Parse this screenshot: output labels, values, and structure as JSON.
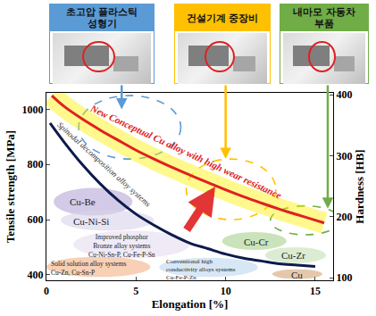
{
  "chart_data": {
    "type": "line",
    "xlabel": "Elongation [%]",
    "ylabel": "Tensile strength [MPa]",
    "y2label": "Hardness [HB]",
    "xlim": [
      0,
      16
    ],
    "xticks": [
      0,
      5,
      10,
      15
    ],
    "ylim": [
      380,
      1060
    ],
    "yticks": [
      400,
      600,
      800,
      1000
    ],
    "y2lim": [
      96,
      403
    ],
    "y2ticks": [
      100,
      200,
      300,
      400
    ],
    "grid": false,
    "series": [
      {
        "name": "New Conceptual Cu alloy with high wear resistance",
        "color": "#e02020",
        "line_style": "solid",
        "x": [
          0.3,
          1,
          2,
          3,
          4,
          5,
          6,
          7,
          8,
          9,
          10,
          11,
          12,
          13,
          14,
          15,
          15.5
        ],
        "values": [
          1050,
          1010,
          965,
          925,
          888,
          852,
          820,
          790,
          762,
          735,
          708,
          683,
          660,
          638,
          618,
          598,
          588
        ]
      },
      {
        "color": "#0d1b4c",
        "line_style": "solid",
        "x": [
          0.2,
          1,
          2,
          3,
          4,
          5,
          6,
          7,
          8,
          9,
          10,
          11,
          12,
          13,
          14,
          15
        ],
        "values": [
          950,
          880,
          800,
          730,
          670,
          620,
          580,
          545,
          515,
          495,
          475,
          460,
          450,
          440,
          435,
          430
        ]
      }
    ],
    "regions": [
      {
        "x": [
          0.4,
          4.8
        ],
        "y": [
          615,
          715
        ],
        "color": "#b4a7d6",
        "line_style": "solid"
      },
      {
        "x": [
          0.8,
          6.0
        ],
        "y": [
          560,
          635
        ],
        "color": "#d9d2e9",
        "line_style": "solid"
      },
      {
        "x": [
          1.5,
          8.0
        ],
        "y": [
          460,
          560
        ],
        "color": "#e4dcf0",
        "line_style": "solid"
      },
      {
        "x": [
          0.0,
          5.8
        ],
        "y": [
          392,
          465
        ],
        "color": "#f4b183",
        "line_style": "solid"
      },
      {
        "x": [
          6.3,
          11.8
        ],
        "y": [
          392,
          462
        ],
        "color": "#bdd7ee",
        "line_style": "solid"
      },
      {
        "x": [
          9.8,
          13.4
        ],
        "y": [
          490,
          555
        ],
        "color": "#a9d18e",
        "line_style": "solid"
      },
      {
        "x": [
          12.2,
          15.6
        ],
        "y": [
          442,
          500
        ],
        "color": "#c5e0b4",
        "line_style": "solid"
      },
      {
        "x": [
          12.6,
          15.4
        ],
        "y": [
          385,
          420
        ],
        "color": "#d4a373",
        "line_style": "solid"
      },
      {
        "x": [
          1.8,
          7.5
        ],
        "y": [
          820,
          1050
        ],
        "color": "#5b9bd5",
        "line_style": "dashed"
      },
      {
        "x": [
          7.8,
          12.8
        ],
        "y": [
          600,
          820
        ],
        "color": "#ffc000",
        "line_style": "dashed"
      },
      {
        "x": [
          12.5,
          16.4
        ],
        "y": [
          545,
          650
        ],
        "color": "#70ad47",
        "line_style": "dashed"
      }
    ],
    "annotations": [
      {
        "text": "Spinodal decomposition alloy systems",
        "x": 3.2,
        "y": 800
      },
      {
        "text": "Cu-Be",
        "x": 2.0,
        "y": 665
      },
      {
        "text": "Cu-Ni-Si",
        "x": 2.5,
        "y": 595
      },
      {
        "text": "Improved phosphor\nBronze alloy systems\nCu-Ni-Sn-P, Cu-Fe-P-Sn",
        "x": 4.2,
        "y": 505
      },
      {
        "text": "Solid solution alloy systems\nCu-Zn, Cu-Sn-P",
        "x": 0.15,
        "y": 425
      },
      {
        "text": "Conventional high\nconductivity alloys systems\nCu-Fe-P-Zn",
        "x": 6.6,
        "y": 420
      },
      {
        "text": "Cu-Cr",
        "x": 11.7,
        "y": 520
      },
      {
        "text": "Cu-Zr",
        "x": 13.8,
        "y": 470
      },
      {
        "text": "Cu",
        "x": 14.0,
        "y": 400
      }
    ],
    "applications": [
      {
        "label": "초고압 플라스틱 성형기",
        "color": "#5b9bd5",
        "target": [
          4.2,
          1000
        ]
      },
      {
        "label": "건설기계 중장비",
        "color": "#ffc000",
        "target": [
          10.0,
          820
        ]
      },
      {
        "label": "내마모 자동차 부품",
        "color": "#70ad47",
        "target": [
          15.7,
          640
        ]
      }
    ]
  }
}
